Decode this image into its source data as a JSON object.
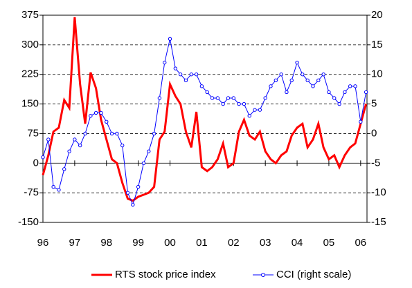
{
  "chart_data": {
    "type": "line",
    "x": [
      1996.0,
      1996.17,
      1996.33,
      1996.5,
      1996.67,
      1996.83,
      1997.0,
      1997.17,
      1997.33,
      1997.5,
      1997.67,
      1997.83,
      1998.0,
      1998.17,
      1998.33,
      1998.5,
      1998.67,
      1998.83,
      1999.0,
      1999.17,
      1999.33,
      1999.5,
      1999.67,
      1999.83,
      2000.0,
      2000.17,
      2000.33,
      2000.5,
      2000.67,
      2000.83,
      2001.0,
      2001.17,
      2001.33,
      2001.5,
      2001.67,
      2001.83,
      2002.0,
      2002.17,
      2002.33,
      2002.5,
      2002.67,
      2002.83,
      2003.0,
      2003.17,
      2003.33,
      2003.5,
      2003.67,
      2003.83,
      2004.0,
      2004.17,
      2004.33,
      2004.5,
      2004.67,
      2004.83,
      2005.0,
      2005.17,
      2005.33,
      2005.5,
      2005.67,
      2005.83,
      2006.0,
      2006.17
    ],
    "series": [
      {
        "name": "RTS stock price index",
        "color": "#ff0000",
        "axis": "y",
        "values": [
          -30,
          20,
          80,
          90,
          160,
          140,
          370,
          200,
          100,
          230,
          190,
          110,
          60,
          10,
          0,
          -50,
          -90,
          -95,
          -85,
          -80,
          -75,
          -60,
          60,
          80,
          200,
          170,
          150,
          80,
          40,
          130,
          -10,
          -20,
          -10,
          10,
          50,
          -10,
          0,
          80,
          110,
          70,
          60,
          80,
          30,
          10,
          0,
          20,
          30,
          70,
          90,
          100,
          40,
          60,
          100,
          40,
          10,
          20,
          -10,
          20,
          40,
          50,
          100,
          150
        ]
      },
      {
        "name": "CCI (right scale)",
        "color": "#0000ff",
        "axis": "y2",
        "marker": "circle",
        "values": [
          -4,
          -1,
          -9,
          -9.5,
          -6,
          -3,
          -1,
          -2,
          0,
          3,
          3.5,
          3.5,
          2,
          0,
          0,
          -2,
          -10,
          -12,
          -9,
          -5,
          -3,
          0,
          6,
          12,
          16,
          11,
          10,
          9,
          10,
          10,
          8,
          7,
          6,
          6,
          5,
          6,
          6,
          5,
          5,
          3,
          4,
          4,
          6,
          8,
          9,
          10,
          7,
          9,
          12,
          10,
          9,
          8,
          9,
          10,
          7,
          6,
          5,
          7,
          8,
          8,
          2,
          7
        ]
      }
    ],
    "xlim": [
      1996,
      2006.2
    ],
    "xticks": [
      {
        "value": 1996,
        "label": "96"
      },
      {
        "value": 1997,
        "label": "97"
      },
      {
        "value": 1998,
        "label": "98"
      },
      {
        "value": 1999,
        "label": "99"
      },
      {
        "value": 2000,
        "label": "00"
      },
      {
        "value": 2001,
        "label": "01"
      },
      {
        "value": 2002,
        "label": "02"
      },
      {
        "value": 2003,
        "label": "03"
      },
      {
        "value": 2004,
        "label": "04"
      },
      {
        "value": 2005,
        "label": "05"
      },
      {
        "value": 2006,
        "label": "06"
      }
    ],
    "ylim": [
      -150,
      375
    ],
    "yticks": [
      -150,
      -75,
      0,
      75,
      150,
      225,
      300,
      375
    ],
    "y2lim": [
      -15,
      20
    ],
    "y2ticks": [
      -15,
      -10,
      -5,
      0,
      5,
      10,
      15,
      20
    ],
    "grid": true,
    "legend": "bottom"
  }
}
